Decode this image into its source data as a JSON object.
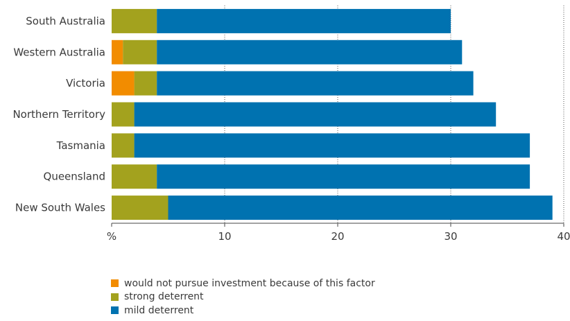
{
  "chart_data": {
    "type": "bar",
    "orientation": "horizontal",
    "stacked": true,
    "categories": [
      "South Australia",
      "Western Australia",
      "Victoria",
      "Northern Territory",
      "Tasmania",
      "Queensland",
      "New South Wales"
    ],
    "series": [
      {
        "name": "would not pursue investment because of this factor",
        "color": "#f28c00",
        "values": [
          0,
          1,
          2,
          0,
          0,
          0,
          0
        ]
      },
      {
        "name": "strong deterrent",
        "color": "#a3a21e",
        "values": [
          4,
          3,
          2,
          2,
          2,
          4,
          5
        ]
      },
      {
        "name": "mild deterrent",
        "color": "#0072b0",
        "values": [
          26,
          27,
          28,
          32,
          35,
          33,
          34
        ]
      }
    ],
    "xlim": [
      0,
      40
    ],
    "xticks": [
      0,
      10,
      20,
      30,
      40
    ],
    "tick_labels": [
      "%",
      "10",
      "20",
      "30",
      "40"
    ],
    "grid": "vertical dotted",
    "legend_position": "bottom-left"
  }
}
